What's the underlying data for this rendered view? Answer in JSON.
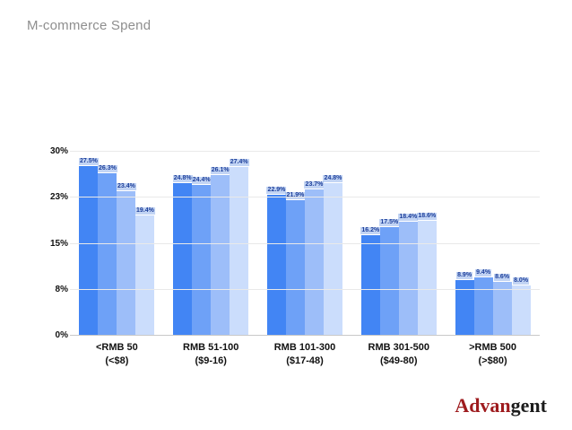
{
  "title": "M-commerce Spend",
  "logo": {
    "part1": "Advan",
    "part2": "gent"
  },
  "chart_data": {
    "type": "bar",
    "title": "M-commerce Spend",
    "xlabel": "",
    "ylabel": "",
    "ylim": [
      0,
      30
    ],
    "grid": true,
    "legend_position": "none",
    "y_ticks": [
      {
        "value": 0,
        "label": "0%"
      },
      {
        "value": 7.5,
        "label": "8%"
      },
      {
        "value": 15,
        "label": "15%"
      },
      {
        "value": 22.5,
        "label": "23%"
      },
      {
        "value": 30,
        "label": "30%"
      }
    ],
    "categories": [
      {
        "line1": "<RMB 50",
        "line2": "(<$8)"
      },
      {
        "line1": "RMB 51-100",
        "line2": "($9-16)"
      },
      {
        "line1": "RMB 101-300",
        "line2": "($17-48)"
      },
      {
        "line1": "RMB 301-500",
        "line2": "($49-80)"
      },
      {
        "line1": ">RMB 500",
        "line2": "(>$80)"
      }
    ],
    "series": [
      {
        "name": "series-1",
        "color": "#4285f4",
        "values": [
          27.5,
          24.8,
          22.9,
          16.2,
          8.9
        ]
      },
      {
        "name": "series-2",
        "color": "#6ea1f7",
        "values": [
          26.3,
          24.4,
          21.9,
          17.5,
          9.4
        ]
      },
      {
        "name": "series-3",
        "color": "#9dbef9",
        "values": [
          23.4,
          26.1,
          23.7,
          18.4,
          8.6
        ]
      },
      {
        "name": "series-4",
        "color": "#cbddfc",
        "values": [
          19.4,
          27.4,
          24.8,
          18.6,
          8.0
        ]
      }
    ]
  }
}
